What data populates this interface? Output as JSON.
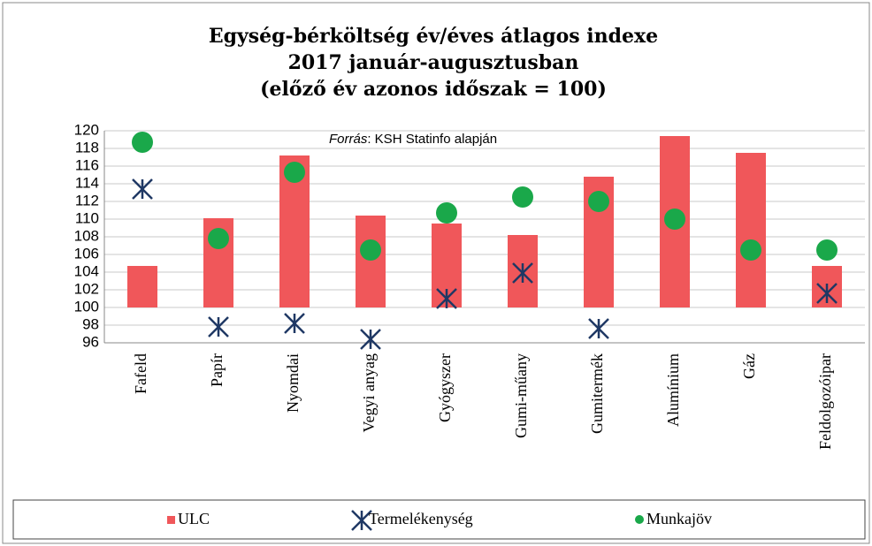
{
  "chart_data": {
    "type": "bar",
    "title": [
      "Egység-bérköltség év/éves átlagos indexe",
      "2017 január-augusztusban",
      "(előző év azonos időszak = 100)"
    ],
    "annotation": [
      "Forrás",
      ": KSH Statinfo alapján"
    ],
    "categories": [
      "Fafeld",
      "Papír",
      "Nyomdai",
      "Vegyi anyag",
      "Gyógyszer",
      "Gumi-műany",
      "Gumitermék",
      "Alumínium",
      "Gáz",
      "Feldolgozóipar"
    ],
    "series": [
      {
        "name": "ULC",
        "type": "bar",
        "color": "#f0575a",
        "values": [
          104.7,
          110.1,
          117.2,
          110.4,
          109.5,
          108.2,
          114.8,
          119.4,
          117.5,
          104.7
        ]
      },
      {
        "name": "Termelékenység",
        "type": "star",
        "color": "#1f3864",
        "values": [
          113.4,
          97.8,
          98.2,
          96.4,
          101.0,
          103.9,
          97.6,
          null,
          null,
          101.6
        ]
      },
      {
        "name": "Munkajöv",
        "type": "dot",
        "color": "#1aa84a",
        "values": [
          118.7,
          107.8,
          115.3,
          106.5,
          110.7,
          112.5,
          112.0,
          110.0,
          106.5,
          106.5
        ]
      }
    ],
    "bar_base": 100,
    "ylim": [
      96,
      120
    ],
    "yticks": [
      96,
      98,
      100,
      102,
      104,
      106,
      108,
      110,
      112,
      114,
      116,
      118,
      120
    ],
    "grid": true
  }
}
